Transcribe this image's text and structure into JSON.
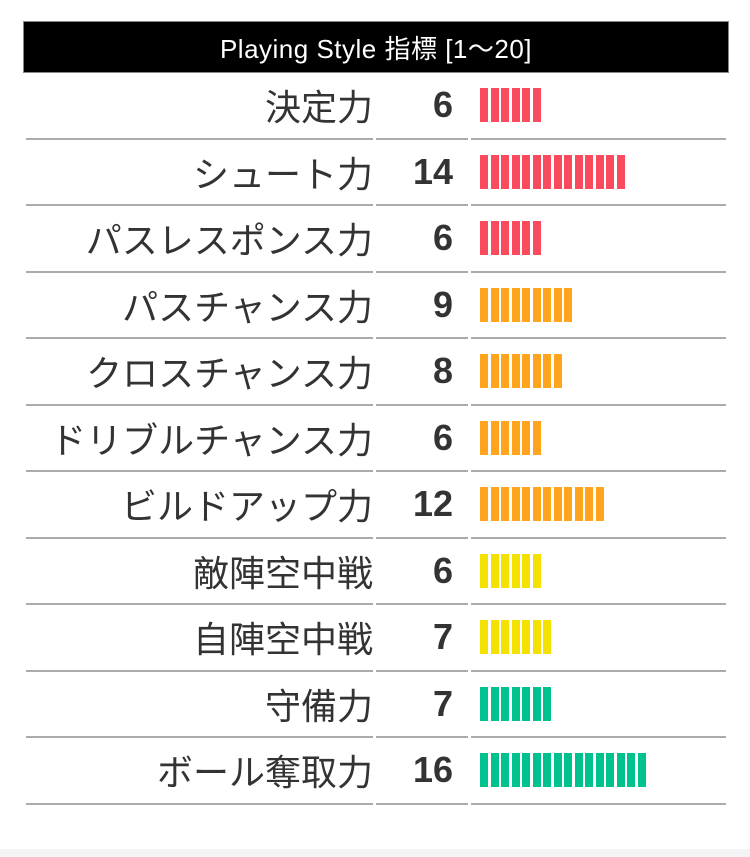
{
  "title": "Playing Style 指標 [1〜20]",
  "palette": {
    "red": "#FA4A5E",
    "orange": "#FFA41C",
    "yellow": "#F5E100",
    "green": "#00C28E",
    "text": "#333333",
    "divider": "#ababab",
    "header_bg": "#000000",
    "header_text": "#ffffff"
  },
  "chart_data": {
    "type": "bar",
    "title": "Playing Style 指標 [1〜20]",
    "value_range": [
      1,
      20
    ],
    "max_segments": 20,
    "legend_position": "none",
    "categories": [
      "決定力",
      "シュート力",
      "パスレスポンス力",
      "パスチャンス力",
      "クロスチャンス力",
      "ドリブルチャンス力",
      "ビルドアップ力",
      "敵陣空中戦",
      "自陣空中戦",
      "守備力",
      "ボール奪取力"
    ],
    "values": [
      6,
      14,
      6,
      9,
      8,
      6,
      12,
      6,
      7,
      7,
      16
    ],
    "colors": [
      "red",
      "red",
      "red",
      "orange",
      "orange",
      "orange",
      "orange",
      "yellow",
      "yellow",
      "green",
      "green"
    ]
  }
}
